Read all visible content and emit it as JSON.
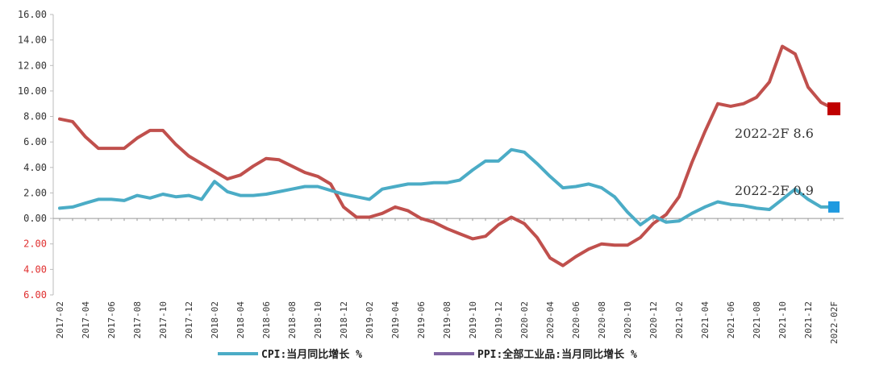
{
  "chart_data": {
    "type": "line",
    "title": "",
    "xlabel": "",
    "ylabel": "",
    "ylim": [
      -6,
      16
    ],
    "yticks": [
      16,
      14,
      12,
      10,
      8,
      6,
      4,
      2,
      0,
      -2,
      -4,
      -6
    ],
    "ytick_labels": [
      "16.00",
      "14.00",
      "12.00",
      "10.00",
      "8.00",
      "6.00",
      "4.00",
      "2.00",
      "0.00",
      "2.00",
      "4.00",
      "6.00"
    ],
    "negative_tick_color": "#e03030",
    "grid": false,
    "legend_position": "bottom",
    "x": [
      "2017-02",
      "2017-03",
      "2017-04",
      "2017-05",
      "2017-06",
      "2017-07",
      "2017-08",
      "2017-09",
      "2017-10",
      "2017-11",
      "2017-12",
      "2018-01",
      "2018-02",
      "2018-03",
      "2018-04",
      "2018-05",
      "2018-06",
      "2018-07",
      "2018-08",
      "2018-09",
      "2018-10",
      "2018-11",
      "2018-12",
      "2019-01",
      "2019-02",
      "2019-03",
      "2019-04",
      "2019-05",
      "2019-06",
      "2019-07",
      "2019-08",
      "2019-09",
      "2019-10",
      "2019-11",
      "2019-12",
      "2020-01",
      "2020-02",
      "2020-03",
      "2020-04",
      "2020-05",
      "2020-06",
      "2020-07",
      "2020-08",
      "2020-09",
      "2020-10",
      "2020-11",
      "2020-12",
      "2021-01",
      "2021-02",
      "2021-03",
      "2021-04",
      "2021-05",
      "2021-06",
      "2021-07",
      "2021-08",
      "2021-09",
      "2021-10",
      "2021-11",
      "2021-12",
      "2022-01",
      "2022-02"
    ],
    "x_tick_labels": [
      "2017-02",
      "2017-04",
      "2017-06",
      "2017-08",
      "2017-10",
      "2017-12",
      "2018-02",
      "2018-04",
      "2018-06",
      "2018-08",
      "2018-10",
      "2018-12",
      "2019-02",
      "2019-04",
      "2019-06",
      "2019-08",
      "2019-10",
      "2019-12",
      "2020-02",
      "2020-04",
      "2020-06",
      "2020-08",
      "2020-10",
      "2020-12",
      "2021-02",
      "2021-04",
      "2021-06",
      "2021-08",
      "2021-10",
      "2021-12",
      "2022-02F"
    ],
    "series": [
      {
        "name": "CPI:当月同比增长 %",
        "color": "#4bacc6",
        "values": [
          0.8,
          0.9,
          1.2,
          1.5,
          1.5,
          1.4,
          1.8,
          1.6,
          1.9,
          1.7,
          1.8,
          1.5,
          2.9,
          2.1,
          1.8,
          1.8,
          1.9,
          2.1,
          2.3,
          2.5,
          2.5,
          2.2,
          1.9,
          1.7,
          1.5,
          2.3,
          2.5,
          2.7,
          2.7,
          2.8,
          2.8,
          3.0,
          3.8,
          4.5,
          4.5,
          5.4,
          5.2,
          4.3,
          3.3,
          2.4,
          2.5,
          2.7,
          2.4,
          1.7,
          0.5,
          -0.5,
          0.2,
          -0.3,
          -0.2,
          0.4,
          0.9,
          1.3,
          1.1,
          1.0,
          0.8,
          0.7,
          1.5,
          2.3,
          1.5,
          0.9,
          0.9
        ]
      },
      {
        "name": "PPI:全部工业品:当月同比增长 %",
        "color": "#c0504d",
        "legend_color": "#8064a2",
        "values": [
          7.8,
          7.6,
          6.4,
          5.5,
          5.5,
          5.5,
          6.3,
          6.9,
          6.9,
          5.8,
          4.9,
          4.3,
          3.7,
          3.1,
          3.4,
          4.1,
          4.7,
          4.6,
          4.1,
          3.6,
          3.3,
          2.7,
          0.9,
          0.1,
          0.1,
          0.4,
          0.9,
          0.6,
          0.0,
          -0.3,
          -0.8,
          -1.2,
          -1.6,
          -1.4,
          -0.5,
          0.1,
          -0.4,
          -1.5,
          -3.1,
          -3.7,
          -3.0,
          -2.4,
          -2.0,
          -2.1,
          -2.1,
          -1.5,
          -0.4,
          0.3,
          1.7,
          4.4,
          6.8,
          9.0,
          8.8,
          9.0,
          9.5,
          10.7,
          13.5,
          12.9,
          10.3,
          9.1,
          8.6
        ]
      }
    ],
    "annotations": [
      {
        "text": "2022-2F 8.6",
        "series": 1,
        "marker_color": "#c00000"
      },
      {
        "text": "2022-2F 0.9",
        "series": 0,
        "marker_color": "#1f9ae0"
      }
    ],
    "legend": [
      {
        "label": "CPI:当月同比增长 %",
        "color": "#4bacc6"
      },
      {
        "label": "PPI:全部工业品:当月同比增长 %",
        "color": "#8064a2"
      }
    ]
  }
}
